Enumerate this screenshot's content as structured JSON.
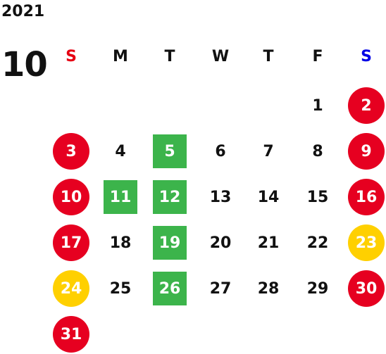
{
  "year": "2021",
  "month": "10",
  "colors": {
    "sunday_label": "#e60012",
    "saturday_label": "#0000e6",
    "holiday_red": "#e60020",
    "holiday_yellow": "#ffd000",
    "event_green": "#3cb44b"
  },
  "weekdays": [
    {
      "label": "S",
      "color": "#e60012"
    },
    {
      "label": "M",
      "color": "#111111"
    },
    {
      "label": "T",
      "color": "#111111"
    },
    {
      "label": "W",
      "color": "#111111"
    },
    {
      "label": "T",
      "color": "#111111"
    },
    {
      "label": "F",
      "color": "#111111"
    },
    {
      "label": "S",
      "color": "#0000e6"
    }
  ],
  "days": [
    {
      "day": "1",
      "week": 0,
      "weekday": 5,
      "style": "plain"
    },
    {
      "day": "2",
      "week": 0,
      "weekday": 6,
      "style": "red"
    },
    {
      "day": "3",
      "week": 1,
      "weekday": 0,
      "style": "red"
    },
    {
      "day": "4",
      "week": 1,
      "weekday": 1,
      "style": "plain"
    },
    {
      "day": "5",
      "week": 1,
      "weekday": 2,
      "style": "green"
    },
    {
      "day": "6",
      "week": 1,
      "weekday": 3,
      "style": "plain"
    },
    {
      "day": "7",
      "week": 1,
      "weekday": 4,
      "style": "plain"
    },
    {
      "day": "8",
      "week": 1,
      "weekday": 5,
      "style": "plain"
    },
    {
      "day": "9",
      "week": 1,
      "weekday": 6,
      "style": "red"
    },
    {
      "day": "10",
      "week": 2,
      "weekday": 0,
      "style": "red"
    },
    {
      "day": "11",
      "week": 2,
      "weekday": 1,
      "style": "green"
    },
    {
      "day": "12",
      "week": 2,
      "weekday": 2,
      "style": "green"
    },
    {
      "day": "13",
      "week": 2,
      "weekday": 3,
      "style": "plain"
    },
    {
      "day": "14",
      "week": 2,
      "weekday": 4,
      "style": "plain"
    },
    {
      "day": "15",
      "week": 2,
      "weekday": 5,
      "style": "plain"
    },
    {
      "day": "16",
      "week": 2,
      "weekday": 6,
      "style": "red"
    },
    {
      "day": "17",
      "week": 3,
      "weekday": 0,
      "style": "red"
    },
    {
      "day": "18",
      "week": 3,
      "weekday": 1,
      "style": "plain"
    },
    {
      "day": "19",
      "week": 3,
      "weekday": 2,
      "style": "green"
    },
    {
      "day": "20",
      "week": 3,
      "weekday": 3,
      "style": "plain"
    },
    {
      "day": "21",
      "week": 3,
      "weekday": 4,
      "style": "plain"
    },
    {
      "day": "22",
      "week": 3,
      "weekday": 5,
      "style": "plain"
    },
    {
      "day": "23",
      "week": 3,
      "weekday": 6,
      "style": "yellow"
    },
    {
      "day": "24",
      "week": 4,
      "weekday": 0,
      "style": "yellow"
    },
    {
      "day": "25",
      "week": 4,
      "weekday": 1,
      "style": "plain"
    },
    {
      "day": "26",
      "week": 4,
      "weekday": 2,
      "style": "green"
    },
    {
      "day": "27",
      "week": 4,
      "weekday": 3,
      "style": "plain"
    },
    {
      "day": "28",
      "week": 4,
      "weekday": 4,
      "style": "plain"
    },
    {
      "day": "29",
      "week": 4,
      "weekday": 5,
      "style": "plain"
    },
    {
      "day": "30",
      "week": 4,
      "weekday": 6,
      "style": "red"
    },
    {
      "day": "31",
      "week": 5,
      "weekday": 0,
      "style": "red"
    }
  ]
}
